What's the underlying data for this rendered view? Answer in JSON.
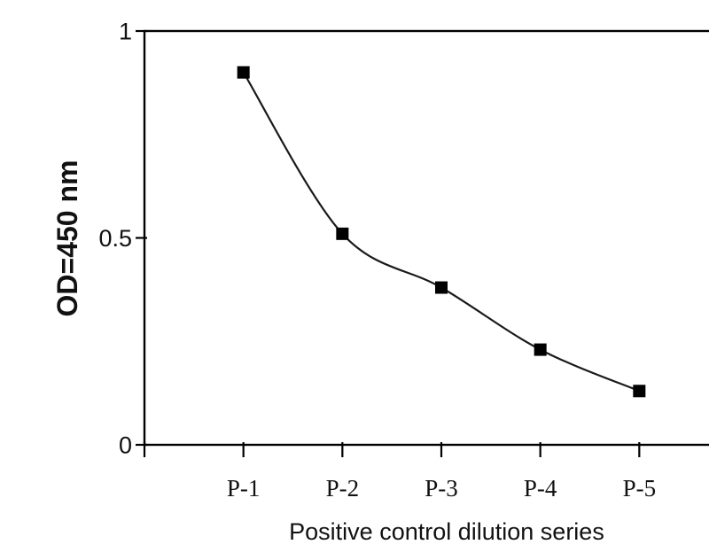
{
  "chart_data": {
    "type": "line",
    "categories": [
      "P-1",
      "P-2",
      "P-3",
      "P-4",
      "P-5"
    ],
    "values": [
      0.9,
      0.51,
      0.38,
      0.23,
      0.13
    ],
    "title": "",
    "xlabel": "Positive control dilution series",
    "ylabel": "OD=450 nm",
    "ylim": [
      0,
      1
    ],
    "yticks": [
      0,
      0.5,
      1
    ],
    "ytick_labels": [
      "0",
      "0.5",
      "1"
    ],
    "grid": false,
    "legend": false,
    "line_smooth": true,
    "marker": "filled-square",
    "marker_size": 14,
    "colors": {
      "line": "#1a1a1a",
      "marker": "#000000",
      "axis": "#000000",
      "text": "#111111",
      "background": "#ffffff"
    }
  }
}
